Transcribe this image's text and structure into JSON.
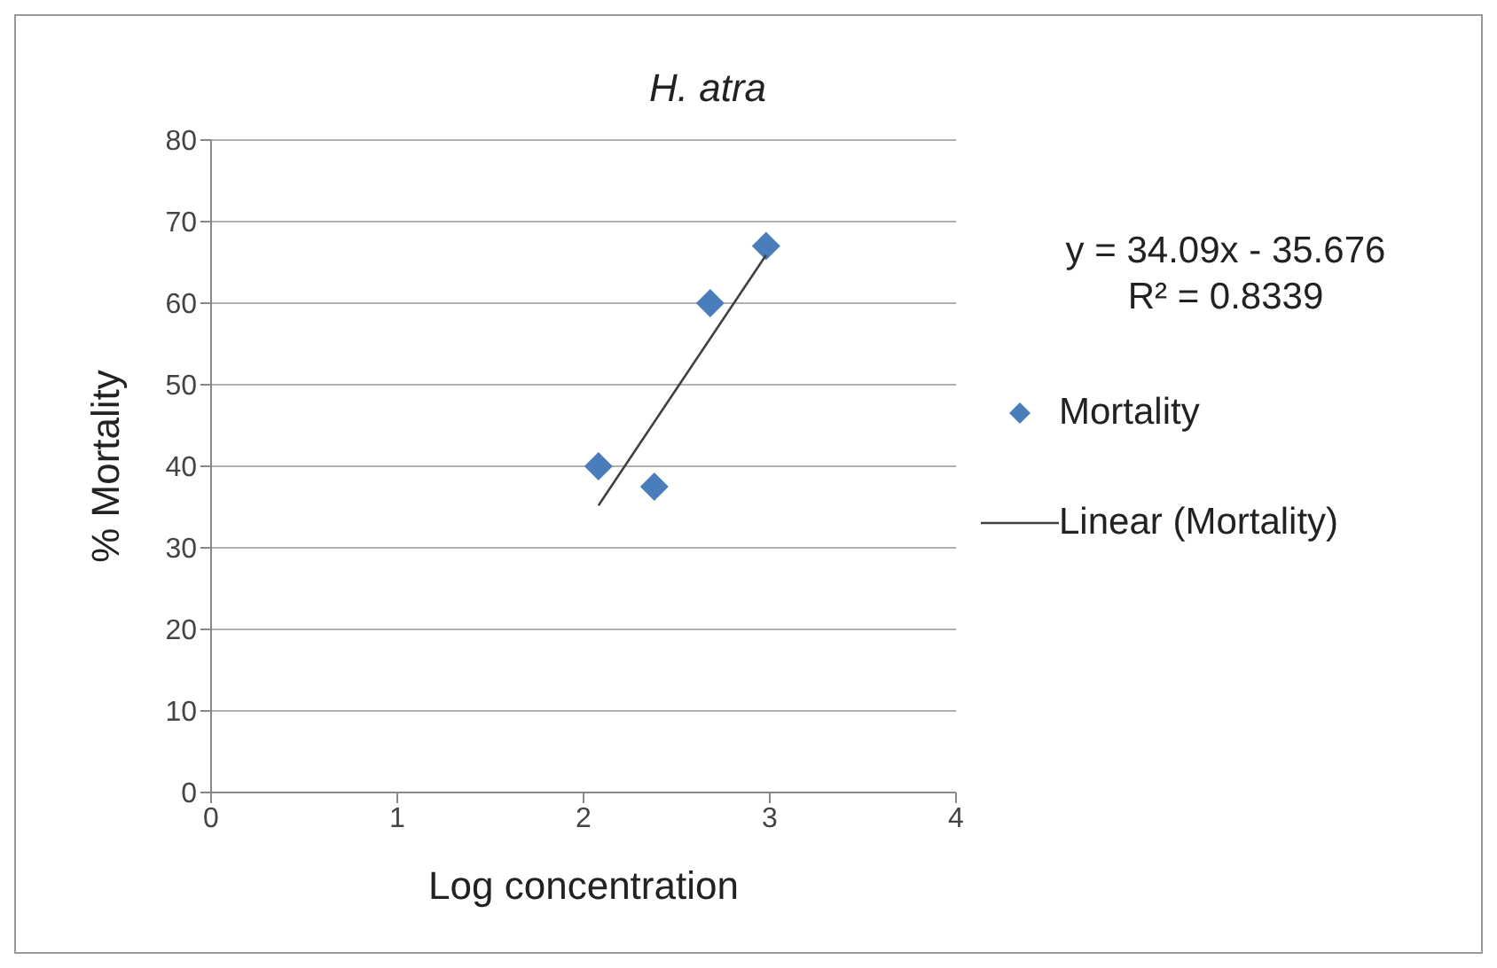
{
  "chart_data": {
    "type": "scatter",
    "title": "H. atra",
    "xlabel": "Log concentration",
    "ylabel": "% Mortality",
    "xlim": [
      0,
      4
    ],
    "xticks": [
      0,
      1,
      2,
      3,
      4
    ],
    "ylim": [
      0,
      80
    ],
    "yticks": [
      0,
      10,
      20,
      30,
      40,
      50,
      60,
      70,
      80
    ],
    "grid": "y",
    "legend": "right",
    "annotations": [
      "y = 34.09x - 35.676",
      "R² = 0.8339"
    ],
    "series": [
      {
        "name": "Mortality",
        "color": "#4a7ebb",
        "marker": "diamond",
        "x": [
          2.08,
          2.38,
          2.68,
          2.98
        ],
        "values": [
          40,
          37.5,
          60,
          67
        ]
      },
      {
        "name": "Linear (Mortality)",
        "type": "line",
        "color": "#404040",
        "marker": "none",
        "x": [
          2.08,
          2.98
        ],
        "values": [
          35.2,
          65.9
        ]
      }
    ]
  }
}
